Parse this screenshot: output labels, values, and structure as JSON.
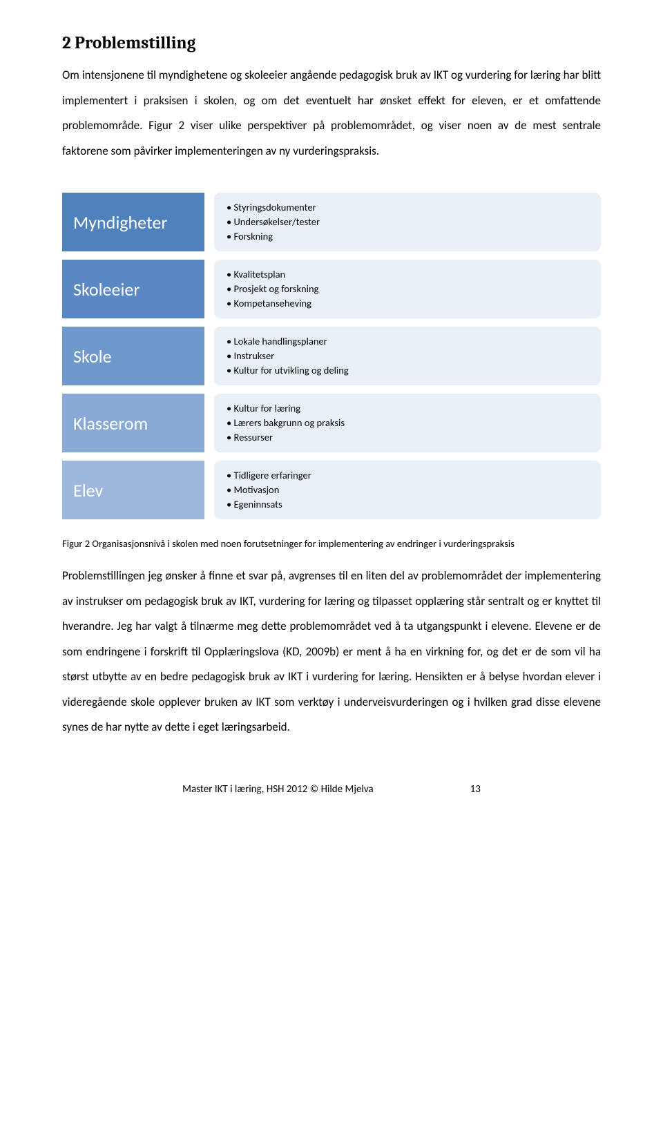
{
  "heading": "2  Problemstilling",
  "intro": "Om intensjonene til myndighetene og skoleeier angående pedagogisk bruk av IKT og vurdering for læring har blitt implementert i praksisen i skolen, og om det eventuelt har ønsket effekt for eleven, er et omfattende problemområde. Figur 2 viser ulike perspektiver på problemområdet, og viser noen av de mest sentrale faktorene som påvirker implementeringen av ny vurderingspraksis.",
  "diagram": {
    "rows": [
      {
        "label": "Myndigheter",
        "items": [
          "Styringsdokumenter",
          "Undersøkelser/tester",
          "Forskning"
        ]
      },
      {
        "label": "Skoleeier",
        "items": [
          "Kvalitetsplan",
          "Prosjekt og forskning",
          "Kompetanseheving"
        ]
      },
      {
        "label": "Skole",
        "items": [
          "Lokale handlingsplaner",
          "Instrukser",
          "Kultur for utvikling og deling"
        ]
      },
      {
        "label": "Klasserom",
        "items": [
          "Kultur for læring",
          "Lærers bakgrunn og praksis",
          "Ressurser"
        ]
      },
      {
        "label": "Elev",
        "items": [
          "Tidligere erfaringer",
          "Motivasjon",
          "Egeninnsats"
        ]
      }
    ],
    "left_colors": [
      "#4f81bd",
      "#5a88c2",
      "#6f98cb",
      "#88aad5",
      "#9db8dc"
    ],
    "right_bg": "#e9f0f8"
  },
  "caption": "Figur 2 Organisasjonsnivå i skolen med noen forutsetninger for implementering av endringer i vurderingspraksis",
  "para2": "Problemstillingen jeg ønsker å finne et svar på, avgrenses til en liten del av problemområdet der implementering av instrukser om pedagogisk bruk av IKT, vurdering for læring og tilpasset opplæring står sentralt og er knyttet til hverandre. Jeg har valgt å tilnærme meg dette problemområdet ved å ta utgangspunkt i elevene. Elevene er de som endringene i forskrift til Opplæringslova (KD, 2009b) er ment å ha en virkning for, og det er de som vil ha størst utbytte av en bedre pedagogisk bruk av IKT i vurdering for læring. Hensikten er å belyse hvordan elever i videregående skole opplever bruken av IKT som verktøy i underveisvurderingen og i hvilken grad disse elevene synes de har nytte av dette i eget læringsarbeid.",
  "footer": {
    "text": "Master IKT i læring, HSH 2012 © Hilde Mjelva",
    "page": "13"
  }
}
